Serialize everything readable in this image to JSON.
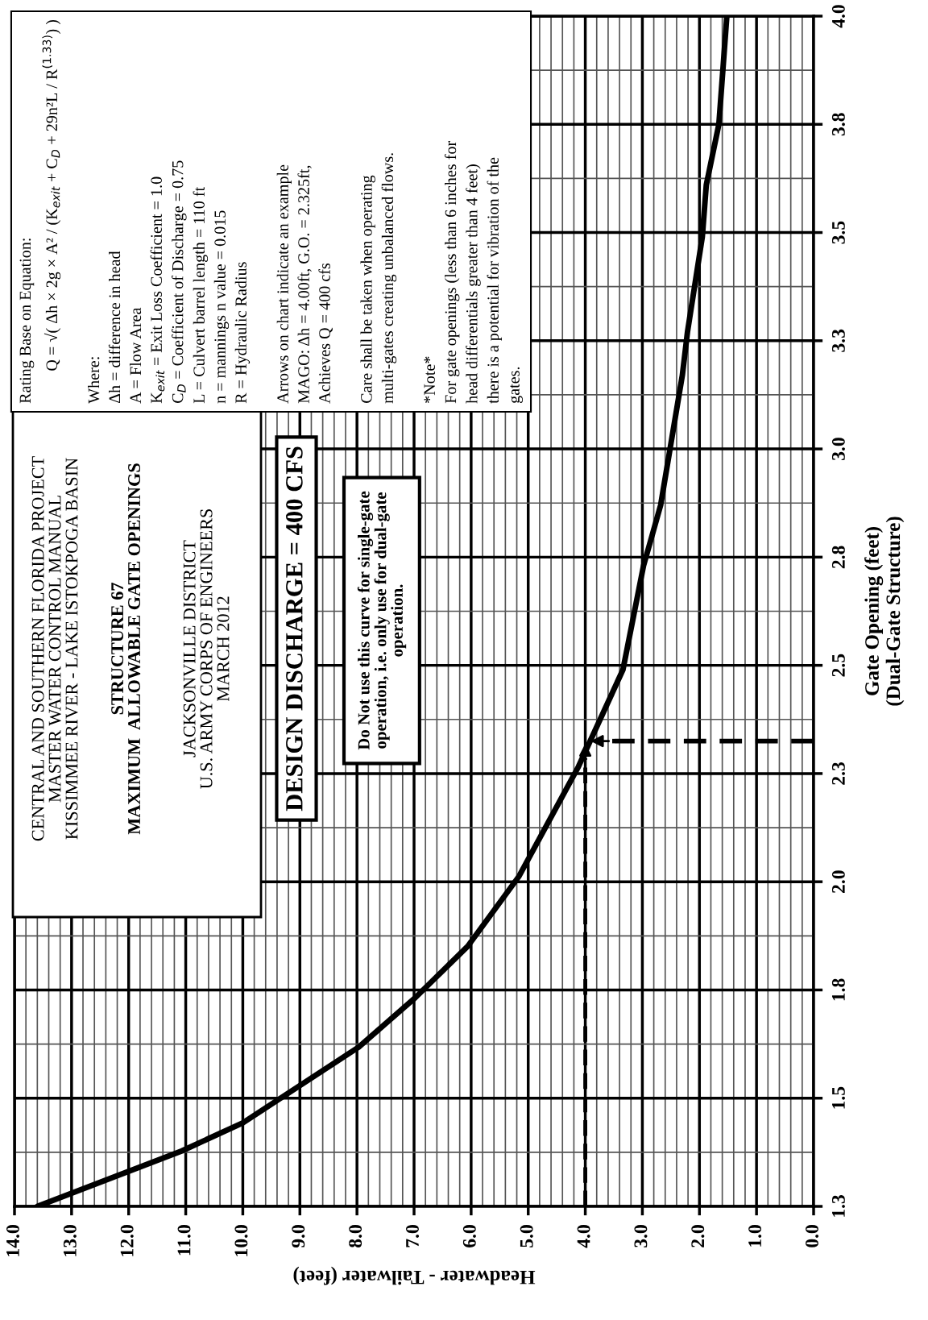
{
  "chart_data": {
    "type": "line",
    "title": "STRUCTURE 67\nMAXIMUM  ALLOWABLE GATE OPENINGS",
    "xlabel": "Headwater - Tailwater (feet)",
    "ylabel": "Gate Opening (feet)\n(Dual-Gate Structure)",
    "annotations": [
      "CENTRAL AND SOUTHERN FLORIDA PROJECT\nMASTER WATER CONTROL MANUAL\nKISSIMMEE RIVER - LAKE ISTOKPOGA BASIN",
      "JACKSONVILLE DISTRICT\nU.S. ARMY CORPS OF ENGINEERS\nMARCH 2012",
      "DESIGN DISCHARGE = 400 CFS",
      "Do Not use this curve for single-gate\noperation, i.e. only use for dual-gate\noperation.",
      "Rating Base on Equation:\n        Q = √( Δh × 2g × A² / (K$_{exit}$ + C$_{D}$ + 29n²L / R$^{(1.33)}$) )\n\nWhere:\nΔh = difference in head\nA = Flow Area\nK$_{exit}$ = Exit Loss Coefficient = 1.0\nC$_{D}$ = Coefficient of Discharge = 0.75\nL = Culvert barrel length = 110 ft\nn = mannings n value = 0.015\nR = Hydraulic Radius\n\nArrows on chart indicate an example\nMAGO: Δh = 4.00ft, G.O. = 2.325ft,\nAchieves Q = 400 cfs\n\nCare shall be taken when operating\nmulti-gates creating unbalanced flows.\n\n*Note*\nFor gate openings (less than 6 inches for\nhead differentials greater than 4 feet)\nthere is a potential for vibration of the\ngates."
    ],
    "x": [
      13.6,
      11.07,
      10.0,
      7.97,
      6.98,
      6.06,
      5.16,
      4.12,
      3.34,
      2.98,
      2.68,
      2.3,
      2.21,
      1.95,
      1.88,
      1.66,
      1.52
    ],
    "series": [
      {
        "color": "#000000",
        "values": [
          1.25,
          1.378,
          1.443,
          1.618,
          1.732,
          1.851,
          2.013,
          2.266,
          2.49,
          2.73,
          2.87,
          3.17,
          3.27,
          3.49,
          3.61,
          3.75,
          4.0
        ]
      }
    ],
    "xlim": [
      14,
      0
    ],
    "xticks": [
      {
        "value": 14,
        "label": "14.0"
      },
      {
        "value": 13,
        "label": "13.0"
      },
      {
        "value": 12,
        "label": "12.0"
      },
      {
        "value": 11,
        "label": "11.0"
      },
      {
        "value": 10,
        "label": "10.0"
      },
      {
        "value": 9,
        "label": "9.0"
      },
      {
        "value": 8,
        "label": "8.0"
      },
      {
        "value": 7,
        "label": "7.0"
      },
      {
        "value": 6,
        "label": "6.0"
      },
      {
        "value": 5,
        "label": "5.0"
      },
      {
        "value": 4,
        "label": "4.0"
      },
      {
        "value": 3,
        "label": "3.0"
      },
      {
        "value": 2,
        "label": "2.0"
      },
      {
        "value": 1,
        "label": "1.0"
      },
      {
        "value": 0,
        "label": "0.0"
      }
    ],
    "ylim": [
      1.25,
      4.0
    ],
    "yticks": [
      {
        "value": 1.25,
        "label": "1.3"
      },
      {
        "value": 1.5,
        "label": "1.5"
      },
      {
        "value": 1.75,
        "label": "1.8"
      },
      {
        "value": 2.0,
        "label": "2.0"
      },
      {
        "value": 2.25,
        "label": "2.3"
      },
      {
        "value": 2.5,
        "label": "2.5"
      },
      {
        "value": 2.75,
        "label": "2.8"
      },
      {
        "value": 3.0,
        "label": "3.0"
      },
      {
        "value": 3.25,
        "label": "3.3"
      },
      {
        "value": 3.5,
        "label": "3.5"
      },
      {
        "value": 3.75,
        "label": "3.8"
      },
      {
        "value": 4.0,
        "label": "4.0"
      }
    ],
    "ref_lines": [
      {
        "axis": "x",
        "value": 4.0,
        "line_style": "dashed",
        "color": "#000000"
      },
      {
        "axis": "y",
        "value": 2.325,
        "line_style": "dashed",
        "color": "#000000"
      }
    ],
    "grid": true,
    "line_style": "solid"
  }
}
